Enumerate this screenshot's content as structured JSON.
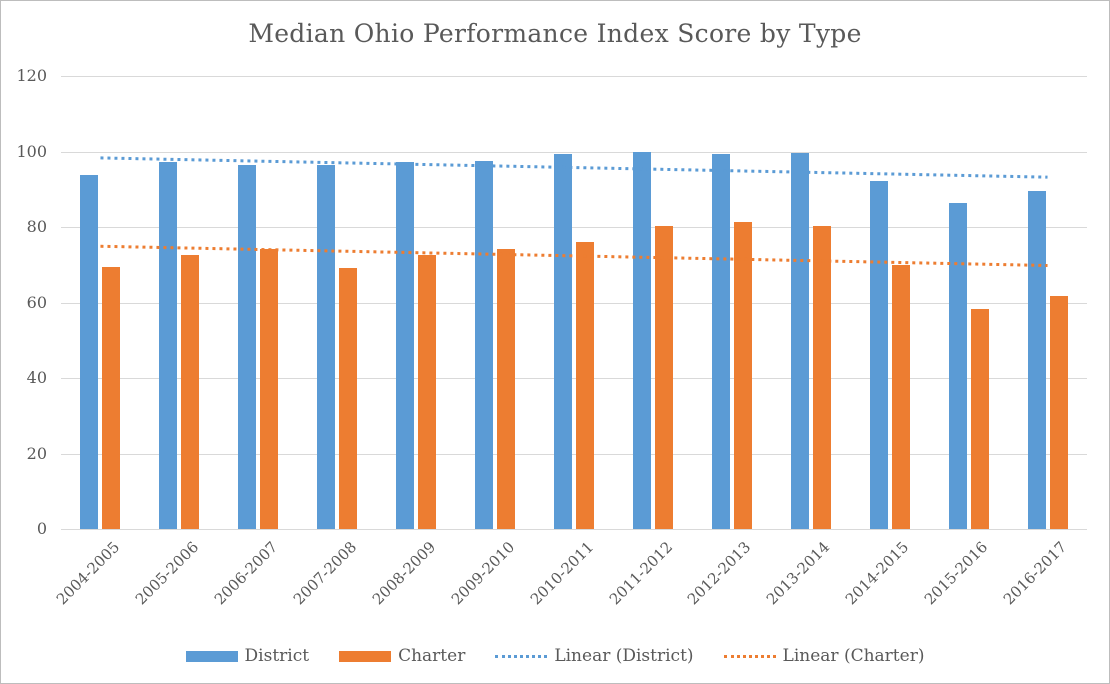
{
  "chart_data": {
    "type": "bar",
    "title": "Median Ohio Performance Index Score by Type",
    "xlabel": "",
    "ylabel": "",
    "ylim": [
      0,
      120
    ],
    "yticks": [
      0,
      20,
      40,
      60,
      80,
      100,
      120
    ],
    "grid": true,
    "xlabel_rotation": 45,
    "legend_position": "bottom",
    "categories": [
      "2004-2005",
      "2005-2006",
      "2006-2007",
      "2007-2008",
      "2008-2009",
      "2009-2010",
      "2010-2011",
      "2011-2012",
      "2012-2013",
      "2013-2014",
      "2014-2015",
      "2015-2016",
      "2016-2017"
    ],
    "series": [
      {
        "name": "District",
        "color": "#5B9BD5",
        "values": [
          93.9,
          97.2,
          96.4,
          96.4,
          97.2,
          97.6,
          99.4,
          99.9,
          99.4,
          99.6,
          92.1,
          86.4,
          89.6
        ]
      },
      {
        "name": "Charter",
        "color": "#ED7D31",
        "values": [
          69.3,
          72.5,
          74.2,
          69.2,
          72.5,
          74.2,
          75.9,
          80.3,
          81.4,
          80.2,
          69.9,
          58.4,
          61.8
        ]
      }
    ],
    "trendlines": [
      {
        "name": "Linear (District)",
        "color": "#5B9BD5",
        "style": "dotted",
        "start": 98.3,
        "end": 93.2
      },
      {
        "name": "Linear (Charter)",
        "color": "#ED7D31",
        "style": "dotted",
        "start": 74.9,
        "end": 69.8
      }
    ],
    "colors": {
      "text": "#595959",
      "gridline": "#D9D9D9",
      "border": "#BDBDBD",
      "background": "#FFFFFF"
    }
  }
}
